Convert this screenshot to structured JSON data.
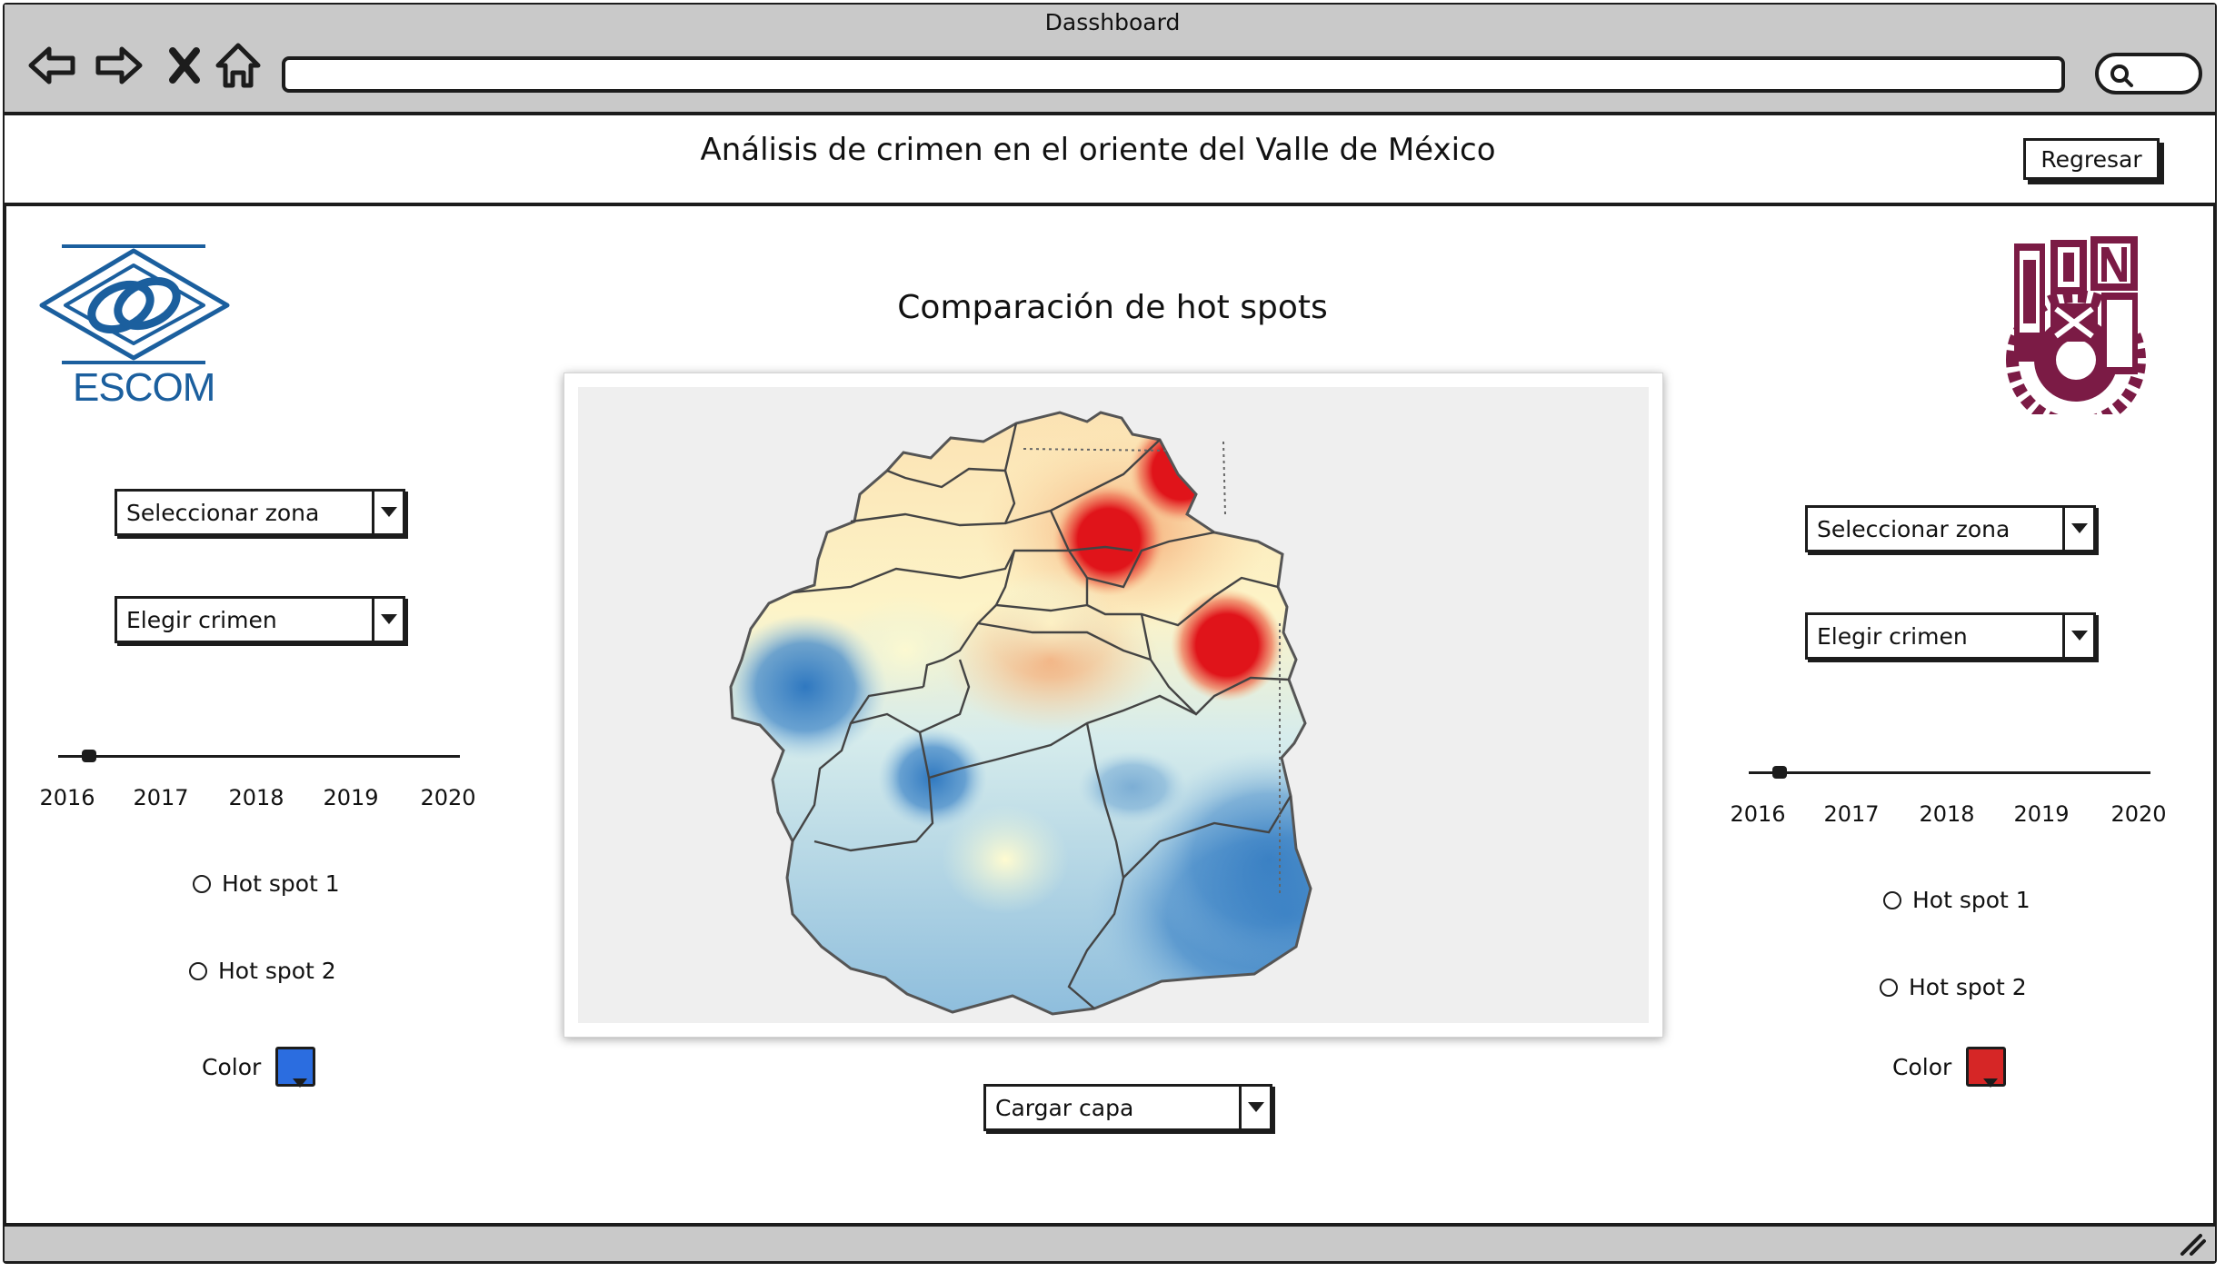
{
  "window": {
    "title": "Dasshboard"
  },
  "browser": {
    "back_icon": "arrow-left-icon",
    "forward_icon": "arrow-right-icon",
    "stop_icon": "close-icon",
    "home_icon": "home-icon",
    "url": "",
    "search_icon": "search-icon"
  },
  "header": {
    "title": "Análisis de crimen en el oriente del  Valle de México",
    "back_button": "Regresar"
  },
  "logos": {
    "left_text": "ESCOM",
    "right_text": "IPN",
    "left_color": "#1b5f9e",
    "right_color": "#7b1b45"
  },
  "main": {
    "title": "Comparación de hot spots",
    "load_layer_select": "Cargar capa"
  },
  "left_panel": {
    "zone_select": "Seleccionar zona",
    "crime_select": "Elegir crimen",
    "years": [
      "2016",
      "2017",
      "2018",
      "2019",
      "2020"
    ],
    "selected_year": "2016",
    "hotspots": [
      "Hot spot 1",
      "Hot spot 2"
    ],
    "color_label": "Color",
    "color": "#2b6de0"
  },
  "right_panel": {
    "zone_select": "Seleccionar zona",
    "crime_select": "Elegir crimen",
    "years": [
      "2016",
      "2017",
      "2018",
      "2019",
      "2020"
    ],
    "selected_year": "2016",
    "hotspots": [
      "Hot spot 1",
      "Hot spot 2"
    ],
    "color_label": "Color",
    "color": "#d62626"
  },
  "colors": {
    "chrome_gray": "#c9c9c9",
    "stroke": "#1c1c1c",
    "hot": "#e0141a",
    "cold": "#2f78c0"
  }
}
